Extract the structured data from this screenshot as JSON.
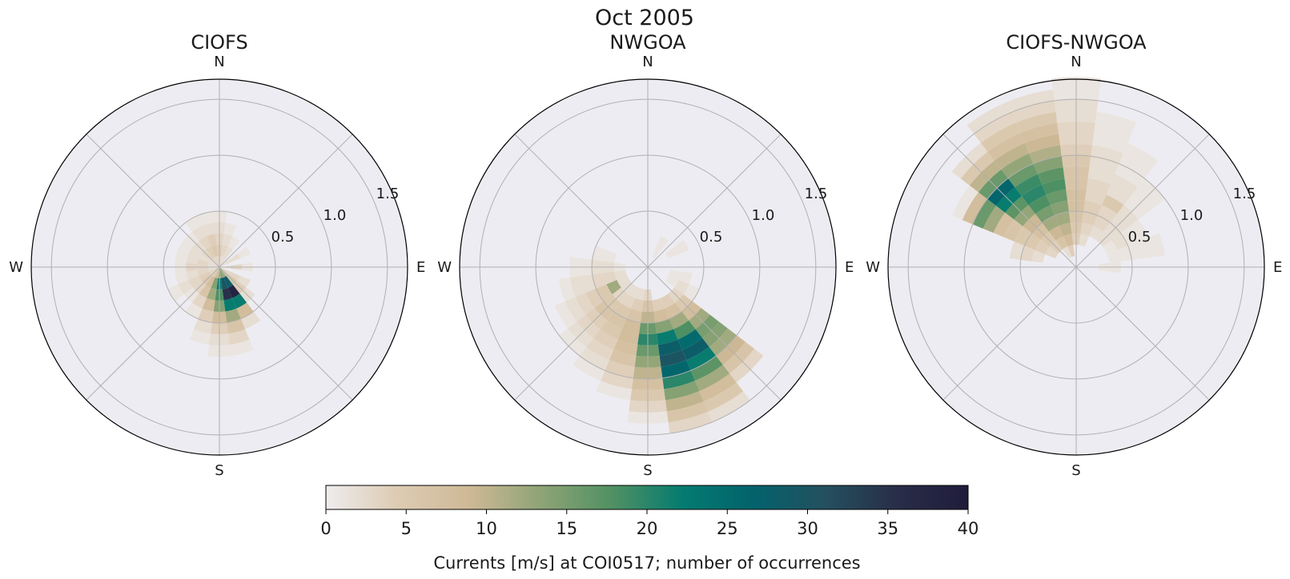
{
  "figure": {
    "title": "Oct 2005"
  },
  "chart_data": [
    {
      "type": "polar_histogram",
      "title": "CIOFS",
      "direction_labels": [
        "N",
        "E",
        "S",
        "W"
      ],
      "radial_ticks": [
        "0.5",
        "1.0",
        "1.5"
      ],
      "radial_tick_values": [
        0.5,
        1.0,
        1.5
      ],
      "rmax": 1.68,
      "grid": true,
      "bins": [
        {
          "dir": 0,
          "r": [
            0.05,
            0.15,
            0.25,
            0.35,
            0.45
          ],
          "count": [
            3,
            4,
            3,
            2,
            1
          ]
        },
        {
          "dir": 15,
          "r": [
            0.05,
            0.15,
            0.25,
            0.35
          ],
          "count": [
            2,
            3,
            2,
            1
          ]
        },
        {
          "dir": 30,
          "r": [
            0.05,
            0.15,
            0.25
          ],
          "count": [
            2,
            2,
            1
          ]
        },
        {
          "dir": 60,
          "r": [
            0.05,
            0.15,
            0.25
          ],
          "count": [
            2,
            2,
            1
          ]
        },
        {
          "dir": 90,
          "r": [
            0.05,
            0.15,
            0.25
          ],
          "count": [
            2,
            3,
            1
          ]
        },
        {
          "dir": 120,
          "r": [
            0.05,
            0.15,
            0.25
          ],
          "count": [
            3,
            3,
            2
          ]
        },
        {
          "dir": 135,
          "r": [
            0.05,
            0.15,
            0.25,
            0.35
          ],
          "count": [
            5,
            6,
            4,
            2
          ]
        },
        {
          "dir": 150,
          "r": [
            0.05,
            0.15,
            0.25,
            0.35,
            0.45,
            0.55
          ],
          "count": [
            12,
            28,
            38,
            22,
            8,
            2
          ]
        },
        {
          "dir": 165,
          "r": [
            0.05,
            0.15,
            0.25,
            0.35,
            0.45,
            0.55,
            0.65,
            0.75
          ],
          "count": [
            14,
            30,
            35,
            22,
            12,
            6,
            3,
            1
          ]
        },
        {
          "dir": 180,
          "r": [
            0.05,
            0.15,
            0.25,
            0.35,
            0.45,
            0.55,
            0.65,
            0.75
          ],
          "count": [
            12,
            22,
            18,
            14,
            8,
            4,
            2,
            1
          ]
        },
        {
          "dir": 195,
          "r": [
            0.05,
            0.15,
            0.25,
            0.35,
            0.45,
            0.55,
            0.65
          ],
          "count": [
            8,
            14,
            12,
            8,
            4,
            2,
            1
          ]
        },
        {
          "dir": 210,
          "r": [
            0.05,
            0.15,
            0.25,
            0.35,
            0.45
          ],
          "count": [
            5,
            8,
            6,
            3,
            1
          ]
        },
        {
          "dir": 225,
          "r": [
            0.05,
            0.15,
            0.25,
            0.35
          ],
          "count": [
            3,
            5,
            3,
            1
          ]
        },
        {
          "dir": 240,
          "r": [
            0.05,
            0.15,
            0.25,
            0.35,
            0.45
          ],
          "count": [
            3,
            4,
            3,
            2,
            1
          ]
        },
        {
          "dir": 255,
          "r": [
            0.05,
            0.15,
            0.25,
            0.35
          ],
          "count": [
            2,
            3,
            2,
            1
          ]
        },
        {
          "dir": 270,
          "r": [
            0.05,
            0.15,
            0.25,
            0.35
          ],
          "count": [
            2,
            3,
            3,
            1
          ]
        },
        {
          "dir": 285,
          "r": [
            0.05,
            0.15,
            0.25,
            0.35
          ],
          "count": [
            2,
            3,
            2,
            1
          ]
        },
        {
          "dir": 300,
          "r": [
            0.05,
            0.15,
            0.25,
            0.35
          ],
          "count": [
            2,
            2,
            2,
            1
          ]
        },
        {
          "dir": 315,
          "r": [
            0.05,
            0.15,
            0.25,
            0.35
          ],
          "count": [
            2,
            3,
            2,
            1
          ]
        },
        {
          "dir": 330,
          "r": [
            0.05,
            0.15,
            0.25,
            0.35,
            0.45
          ],
          "count": [
            3,
            4,
            3,
            2,
            1
          ]
        },
        {
          "dir": 345,
          "r": [
            0.05,
            0.15,
            0.25,
            0.35,
            0.45
          ],
          "count": [
            3,
            5,
            4,
            2,
            1
          ]
        }
      ]
    },
    {
      "type": "polar_histogram",
      "title": "NWGOA",
      "direction_labels": [
        "N",
        "E",
        "S",
        "W"
      ],
      "radial_ticks": [
        "0.5",
        "1.0",
        "1.5"
      ],
      "radial_tick_values": [
        0.5,
        1.0,
        1.5
      ],
      "rmax": 1.68,
      "grid": true,
      "bins": [
        {
          "dir": 30,
          "r": [
            0.15,
            0.25
          ],
          "count": [
            1,
            1
          ]
        },
        {
          "dir": 60,
          "r": [
            0.25,
            0.35
          ],
          "count": [
            1,
            1
          ]
        },
        {
          "dir": 105,
          "r": [
            0.25,
            0.35
          ],
          "count": [
            1,
            1
          ]
        },
        {
          "dir": 120,
          "r": [
            0.25,
            0.35,
            0.45
          ],
          "count": [
            1,
            2,
            1
          ]
        },
        {
          "dir": 135,
          "r": [
            0.35,
            0.45,
            0.55,
            0.65,
            0.75,
            0.85,
            0.95,
            1.05,
            1.15,
            1.25
          ],
          "count": [
            3,
            5,
            8,
            12,
            15,
            14,
            12,
            9,
            6,
            3
          ]
        },
        {
          "dir": 150,
          "r": [
            0.35,
            0.45,
            0.55,
            0.65,
            0.75,
            0.85,
            0.95,
            1.05,
            1.15,
            1.25,
            1.35,
            1.45
          ],
          "count": [
            4,
            7,
            12,
            18,
            25,
            28,
            22,
            17,
            12,
            8,
            5,
            2
          ]
        },
        {
          "dir": 165,
          "r": [
            0.35,
            0.45,
            0.55,
            0.65,
            0.75,
            0.85,
            0.95,
            1.05,
            1.15,
            1.25,
            1.35,
            1.45
          ],
          "count": [
            4,
            8,
            14,
            22,
            28,
            30,
            26,
            20,
            14,
            10,
            6,
            3
          ]
        },
        {
          "dir": 180,
          "r": [
            0.25,
            0.35,
            0.45,
            0.55,
            0.65,
            0.75,
            0.85,
            0.95,
            1.05,
            1.15,
            1.25,
            1.35
          ],
          "count": [
            3,
            6,
            10,
            16,
            20,
            16,
            13,
            10,
            7,
            5,
            3,
            1
          ]
        },
        {
          "dir": 195,
          "r": [
            0.25,
            0.35,
            0.45,
            0.55,
            0.65,
            0.75,
            0.85,
            0.95,
            1.05,
            1.15
          ],
          "count": [
            2,
            4,
            6,
            8,
            8,
            7,
            6,
            4,
            3,
            1
          ]
        },
        {
          "dir": 210,
          "r": [
            0.25,
            0.35,
            0.45,
            0.55,
            0.65,
            0.75,
            0.85,
            0.95,
            1.05
          ],
          "count": [
            2,
            3,
            5,
            6,
            5,
            4,
            3,
            2,
            1
          ]
        },
        {
          "dir": 225,
          "r": [
            0.25,
            0.35,
            0.45,
            0.55,
            0.65,
            0.75,
            0.85,
            0.95
          ],
          "count": [
            2,
            3,
            5,
            6,
            4,
            3,
            2,
            1
          ]
        },
        {
          "dir": 240,
          "r": [
            0.25,
            0.35,
            0.45,
            0.55,
            0.65,
            0.75,
            0.85
          ],
          "count": [
            2,
            12,
            5,
            4,
            3,
            2,
            1
          ]
        },
        {
          "dir": 255,
          "r": [
            0.25,
            0.35,
            0.45,
            0.55,
            0.65,
            0.75
          ],
          "count": [
            2,
            3,
            3,
            2,
            2,
            1
          ]
        },
        {
          "dir": 270,
          "r": [
            0.25,
            0.35,
            0.45,
            0.55,
            0.65
          ],
          "count": [
            1,
            2,
            2,
            1,
            1
          ]
        },
        {
          "dir": 285,
          "r": [
            0.35,
            0.45
          ],
          "count": [
            1,
            1
          ]
        }
      ]
    },
    {
      "type": "polar_histogram",
      "title": "CIOFS-NWGOA",
      "direction_labels": [
        "N",
        "E",
        "S",
        "W"
      ],
      "radial_ticks": [
        "0.5",
        "1.0",
        "1.5"
      ],
      "radial_tick_values": [
        0.5,
        1.0,
        1.5
      ],
      "rmax": 1.68,
      "grid": true,
      "bins": [
        {
          "dir": 0,
          "r": [
            0.25,
            0.35,
            0.45,
            0.55,
            0.65,
            0.75,
            0.85,
            0.95,
            1.05,
            1.15,
            1.25,
            1.35,
            1.45,
            1.55,
            1.65
          ],
          "count": [
            4,
            5,
            6,
            7,
            7,
            6,
            6,
            5,
            4,
            3,
            3,
            2,
            2,
            1,
            1
          ]
        },
        {
          "dir": 15,
          "r": [
            0.25,
            0.35,
            0.45,
            0.55,
            0.65,
            0.75,
            0.85,
            0.95,
            1.05,
            1.15,
            1.25,
            1.35
          ],
          "count": [
            2,
            3,
            4,
            4,
            3,
            3,
            2,
            2,
            2,
            1,
            1,
            1
          ]
        },
        {
          "dir": 30,
          "r": [
            0.35,
            0.45,
            0.55,
            0.65,
            0.75,
            0.85,
            0.95,
            1.05,
            1.15
          ],
          "count": [
            2,
            3,
            3,
            5,
            2,
            2,
            1,
            1,
            1
          ]
        },
        {
          "dir": 45,
          "r": [
            0.35,
            0.45,
            0.55,
            0.65,
            0.75,
            0.85,
            0.95
          ],
          "count": [
            2,
            2,
            2,
            2,
            1,
            1,
            1
          ]
        },
        {
          "dir": 60,
          "r": [
            0.35,
            0.45,
            0.55,
            0.65
          ],
          "count": [
            1,
            2,
            1,
            1
          ]
        },
        {
          "dir": 75,
          "r": [
            0.35,
            0.45,
            0.55,
            0.65,
            0.75
          ],
          "count": [
            1,
            1,
            1,
            1,
            1
          ]
        },
        {
          "dir": 90,
          "r": [
            0.25,
            0.35
          ],
          "count": [
            1,
            1
          ]
        },
        {
          "dir": 285,
          "r": [
            0.35,
            0.45,
            0.55
          ],
          "count": [
            2,
            3,
            2
          ]
        },
        {
          "dir": 300,
          "r": [
            0.25,
            0.35,
            0.45,
            0.55,
            0.65,
            0.75,
            0.85,
            0.95,
            1.05,
            1.15
          ],
          "count": [
            3,
            4,
            5,
            5,
            6,
            7,
            12,
            16,
            8,
            1
          ]
        },
        {
          "dir": 315,
          "r": [
            0.25,
            0.35,
            0.45,
            0.55,
            0.65,
            0.75,
            0.85,
            0.95,
            1.05,
            1.15,
            1.25,
            1.35
          ],
          "count": [
            4,
            5,
            7,
            9,
            13,
            17,
            22,
            26,
            16,
            10,
            5,
            2
          ]
        },
        {
          "dir": 330,
          "r": [
            0.15,
            0.25,
            0.35,
            0.45,
            0.55,
            0.65,
            0.75,
            0.85,
            0.95,
            1.05,
            1.15,
            1.25,
            1.35,
            1.45,
            1.55
          ],
          "count": [
            2,
            6,
            9,
            12,
            15,
            18,
            20,
            19,
            16,
            13,
            10,
            7,
            5,
            3,
            2
          ]
        },
        {
          "dir": 345,
          "r": [
            0.15,
            0.25,
            0.35,
            0.45,
            0.55,
            0.65,
            0.75,
            0.85,
            0.95,
            1.05,
            1.15,
            1.25,
            1.35,
            1.45,
            1.55
          ],
          "count": [
            4,
            8,
            10,
            12,
            14,
            16,
            18,
            17,
            14,
            11,
            9,
            7,
            5,
            3,
            2
          ]
        }
      ]
    }
  ],
  "colorbar": {
    "label": "Currents [m/s] at COI0517; number of occurrences",
    "ticks": [
      "0",
      "5",
      "10",
      "15",
      "20",
      "25",
      "30",
      "35",
      "40"
    ],
    "tick_values": [
      0,
      5,
      10,
      15,
      20,
      25,
      30,
      35,
      40
    ],
    "vmin": 0,
    "vmax": 40,
    "colormap": "cmocean rain (sequential)",
    "stops": [
      "#eeeced",
      "#ddcbb3",
      "#cfb996",
      "#8fa476",
      "#519163",
      "#047b70",
      "#03626c",
      "#24505e",
      "#282d48",
      "#201c3b"
    ]
  },
  "colors": {
    "axes_background": "#edecf2",
    "grid": "#b0b0b0",
    "spine": "#000000"
  }
}
